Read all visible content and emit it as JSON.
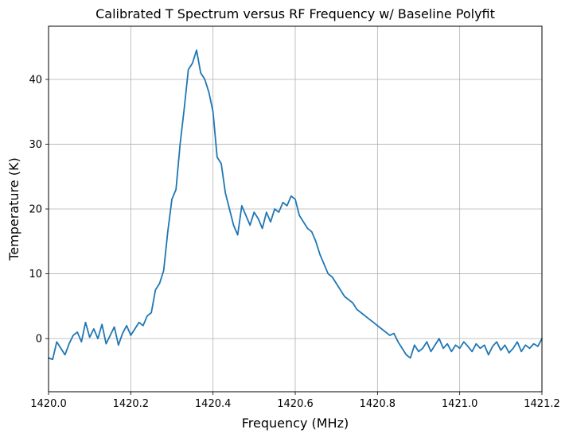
{
  "chart_data": {
    "type": "line",
    "title": "Calibrated T Spectrum versus RF Frequency w/ Baseline Polyfit",
    "xlabel": "Frequency (MHz)",
    "ylabel": "Temperature (K)",
    "xlim": [
      1420.0,
      1421.2
    ],
    "ylim": [
      -8.2,
      48.2
    ],
    "xticks": [
      1420.0,
      1420.2,
      1420.4,
      1420.6,
      1420.8,
      1421.0,
      1421.2
    ],
    "xtick_labels": [
      "1420.0",
      "1420.2",
      "1420.4",
      "1420.6",
      "1420.8",
      "1421.0",
      "1421.2"
    ],
    "yticks": [
      0,
      10,
      20,
      30,
      40
    ],
    "ytick_labels": [
      "0",
      "10",
      "20",
      "30",
      "40"
    ],
    "grid": true,
    "line_color": "#1f77b4",
    "series": [
      {
        "x": [
          1420.0,
          1420.01,
          1420.02,
          1420.03,
          1420.04,
          1420.05,
          1420.06,
          1420.07,
          1420.08,
          1420.09,
          1420.1,
          1420.11,
          1420.12,
          1420.13,
          1420.14,
          1420.15,
          1420.16,
          1420.17,
          1420.18,
          1420.19,
          1420.2,
          1420.21,
          1420.22,
          1420.23,
          1420.24,
          1420.25,
          1420.26,
          1420.27,
          1420.28,
          1420.29,
          1420.3,
          1420.31,
          1420.32,
          1420.33,
          1420.34,
          1420.35,
          1420.36,
          1420.37,
          1420.38,
          1420.39,
          1420.4,
          1420.41,
          1420.42,
          1420.43,
          1420.44,
          1420.45,
          1420.46,
          1420.47,
          1420.48,
          1420.49,
          1420.5,
          1420.51,
          1420.52,
          1420.53,
          1420.54,
          1420.55,
          1420.56,
          1420.57,
          1420.58,
          1420.59,
          1420.6,
          1420.61,
          1420.62,
          1420.63,
          1420.64,
          1420.65,
          1420.66,
          1420.67,
          1420.68,
          1420.69,
          1420.7,
          1420.71,
          1420.72,
          1420.73,
          1420.74,
          1420.75,
          1420.76,
          1420.77,
          1420.78,
          1420.79,
          1420.8,
          1420.81,
          1420.82,
          1420.83,
          1420.84,
          1420.85,
          1420.86,
          1420.87,
          1420.88,
          1420.89,
          1420.9,
          1420.91,
          1420.92,
          1420.93,
          1420.94,
          1420.95,
          1420.96,
          1420.97,
          1420.98,
          1420.99,
          1421.0,
          1421.01,
          1421.02,
          1421.03,
          1421.04,
          1421.05,
          1421.06,
          1421.07,
          1421.08,
          1421.09,
          1421.1,
          1421.11,
          1421.12,
          1421.13,
          1421.14,
          1421.15,
          1421.16,
          1421.17,
          1421.18,
          1421.19,
          1421.2
        ],
        "values": [
          -3.0,
          -3.2,
          -0.5,
          -1.5,
          -2.5,
          -0.8,
          0.5,
          1.0,
          -0.5,
          2.5,
          0.2,
          1.5,
          0.0,
          2.2,
          -0.8,
          0.5,
          1.8,
          -1.0,
          0.8,
          2.0,
          0.5,
          1.5,
          2.5,
          2.0,
          3.5,
          4.0,
          7.5,
          8.5,
          10.5,
          16.5,
          21.5,
          23.0,
          30.0,
          35.5,
          41.5,
          42.5,
          44.5,
          41.0,
          40.0,
          38.0,
          35.0,
          28.0,
          27.0,
          22.5,
          20.0,
          17.5,
          16.0,
          20.5,
          19.0,
          17.5,
          19.5,
          18.5,
          17.0,
          19.5,
          18.0,
          20.0,
          19.5,
          21.0,
          20.5,
          22.0,
          21.5,
          19.0,
          18.0,
          17.0,
          16.5,
          15.0,
          13.0,
          11.5,
          10.0,
          9.5,
          8.5,
          7.5,
          6.5,
          6.0,
          5.5,
          4.5,
          4.0,
          3.5,
          3.0,
          2.5,
          2.0,
          1.5,
          1.0,
          0.5,
          0.8,
          -0.5,
          -1.5,
          -2.5,
          -3.0,
          -1.0,
          -2.0,
          -1.5,
          -0.5,
          -2.0,
          -1.0,
          0.0,
          -1.5,
          -0.8,
          -2.0,
          -1.0,
          -1.5,
          -0.5,
          -1.2,
          -2.0,
          -0.8,
          -1.5,
          -1.0,
          -2.5,
          -1.2,
          -0.5,
          -1.8,
          -1.0,
          -2.2,
          -1.5,
          -0.5,
          -2.0,
          -1.0,
          -1.5,
          -0.8,
          -1.2,
          0.0
        ]
      }
    ]
  }
}
